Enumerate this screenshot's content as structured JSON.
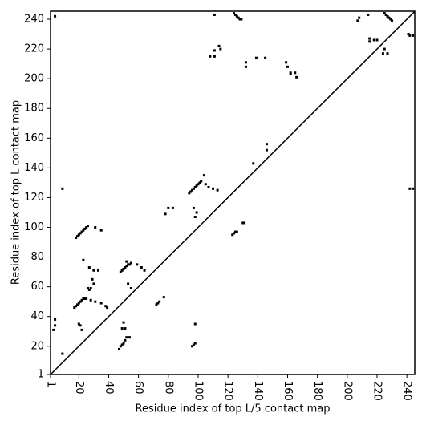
{
  "chart_data": {
    "type": "scatter",
    "xlabel": "Residue index of top L/5 contact map",
    "ylabel": "Residue index of top L contact map",
    "color": "#000000",
    "diagonal": true,
    "xlim": [
      1,
      245.3
    ],
    "ylim": [
      1,
      245.4
    ],
    "xticks": [
      1,
      20,
      40,
      60,
      80,
      100,
      120,
      140,
      160,
      180,
      200,
      220,
      240
    ],
    "yticks": [
      1,
      20,
      40,
      60,
      80,
      100,
      120,
      140,
      160,
      180,
      200,
      220,
      240
    ],
    "x": [
      18,
      19,
      20,
      21,
      22,
      23,
      24,
      25,
      26,
      17,
      18,
      19,
      20,
      21,
      22,
      23,
      24,
      25,
      48,
      49,
      50,
      51,
      52,
      53,
      54,
      55,
      52,
      94,
      95,
      96,
      97,
      98,
      99,
      100,
      101,
      102,
      4,
      3,
      4,
      4,
      9,
      9,
      23,
      27,
      30,
      33,
      29,
      27,
      28,
      26,
      30,
      31,
      35,
      28,
      31,
      35,
      38,
      39,
      59,
      62,
      64,
      55,
      53,
      72,
      73,
      74,
      77,
      78,
      80,
      83,
      97,
      99,
      98,
      104,
      107,
      110,
      113,
      105,
      108,
      111,
      111,
      114,
      115,
      111,
      124,
      125,
      126,
      127,
      128,
      129,
      132,
      132,
      139,
      145,
      146,
      146,
      137,
      159,
      160,
      162,
      162,
      165,
      166,
      207,
      208,
      214,
      215,
      215,
      218,
      220,
      224,
      225,
      227,
      225,
      226,
      227,
      228,
      229,
      230,
      241,
      242,
      244,
      21,
      22,
      20,
      47,
      48,
      49,
      50,
      51,
      52,
      54,
      49,
      50,
      51,
      96,
      97,
      98,
      98,
      123,
      124,
      125,
      126,
      130,
      131,
      242,
      244
    ],
    "values": [
      93,
      94,
      95,
      96,
      97,
      98,
      99,
      100,
      101,
      46,
      47,
      48,
      49,
      50,
      51,
      52,
      52,
      52,
      70,
      71,
      72,
      73,
      74,
      75,
      75,
      76,
      77,
      123,
      124,
      125,
      126,
      127,
      128,
      129,
      130,
      131,
      242,
      31,
      34,
      38,
      126,
      15,
      78,
      73,
      71,
      71,
      65,
      58,
      59,
      59,
      62,
      100,
      98,
      51,
      50,
      49,
      47,
      46,
      75,
      73,
      71,
      59,
      62,
      48,
      49,
      50,
      53,
      109,
      113,
      113,
      113,
      110,
      107,
      135,
      127,
      126,
      125,
      129,
      215,
      215,
      219,
      222,
      220,
      243,
      244,
      243,
      242,
      241,
      240,
      240,
      208,
      211,
      214,
      214,
      152,
      156,
      143,
      211,
      208,
      204,
      203,
      204,
      201,
      239,
      241,
      243,
      227,
      225,
      226,
      226,
      217,
      220,
      217,
      244,
      243,
      242,
      241,
      240,
      239,
      230,
      229,
      229,
      34,
      31,
      35,
      18,
      20,
      21,
      22,
      24,
      26,
      26,
      32,
      36,
      32,
      20,
      21,
      22,
      35,
      95,
      96,
      97,
      97,
      103,
      103,
      126,
      126
    ]
  }
}
